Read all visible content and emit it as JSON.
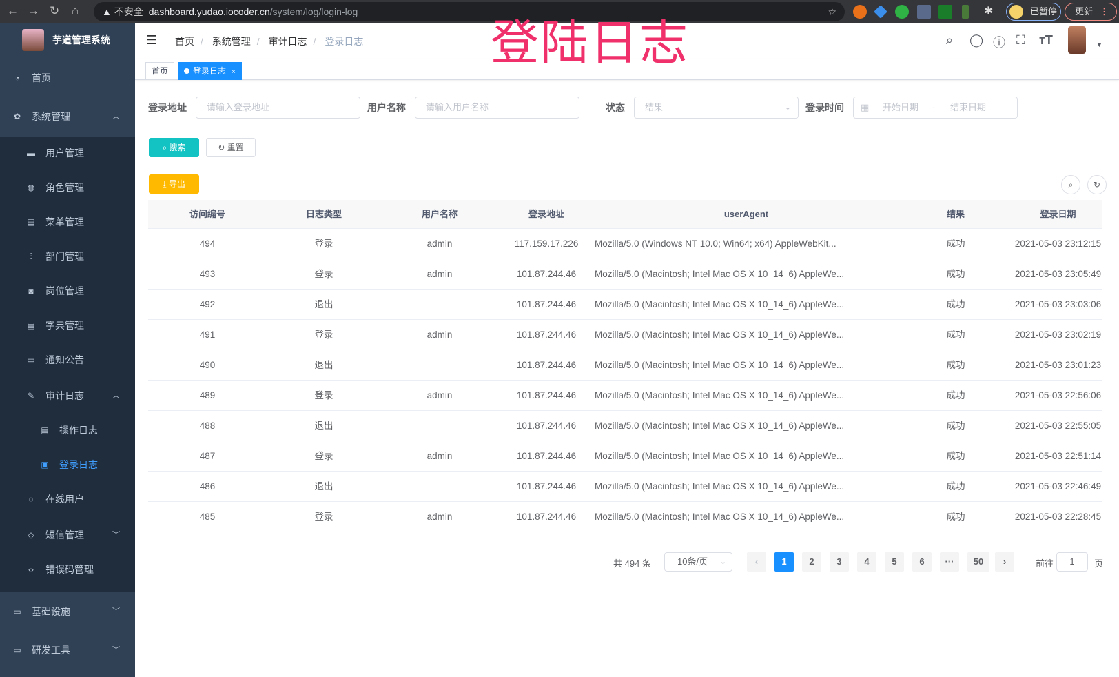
{
  "browser": {
    "security": "不安全",
    "url_host": "dashboard.yudao.iocoder.cn",
    "url_path": "/system/log/login-log",
    "paused": "已暂停",
    "update": "更新"
  },
  "sidebar": {
    "title": "芋道管理系统",
    "items": [
      {
        "label": "首页",
        "icon": "dashboard-icon"
      },
      {
        "label": "系统管理",
        "icon": "gear-icon",
        "expanded": true
      },
      {
        "label": "用户管理",
        "icon": "user-icon"
      },
      {
        "label": "角色管理",
        "icon": "role-icon"
      },
      {
        "label": "菜单管理",
        "icon": "menu-icon"
      },
      {
        "label": "部门管理",
        "icon": "tree-icon"
      },
      {
        "label": "岗位管理",
        "icon": "post-icon"
      },
      {
        "label": "字典管理",
        "icon": "dict-icon"
      },
      {
        "label": "通知公告",
        "icon": "message-icon"
      },
      {
        "label": "审计日志",
        "icon": "log-icon",
        "expanded": true
      },
      {
        "label": "操作日志",
        "icon": "form-icon"
      },
      {
        "label": "登录日志",
        "icon": "logininfor-icon",
        "active": true
      },
      {
        "label": "在线用户",
        "icon": "online-icon"
      },
      {
        "label": "短信管理",
        "icon": "sms-icon"
      },
      {
        "label": "错误码管理",
        "icon": "code-icon"
      },
      {
        "label": "基础设施",
        "icon": "monitor-icon"
      },
      {
        "label": "研发工具",
        "icon": "tool-icon"
      }
    ]
  },
  "header": {
    "breadcrumb": [
      "首页",
      "系统管理",
      "审计日志",
      "登录日志"
    ],
    "overlay_title": "登陆日志"
  },
  "tags": [
    {
      "label": "首页"
    },
    {
      "label": "登录日志",
      "active": true
    }
  ],
  "filters": {
    "ip_label": "登录地址",
    "ip_placeholder": "请输入登录地址",
    "user_label": "用户名称",
    "user_placeholder": "请输入用户名称",
    "status_label": "状态",
    "status_placeholder": "结果",
    "time_label": "登录时间",
    "start_placeholder": "开始日期",
    "end_placeholder": "结束日期",
    "range_sep": "-"
  },
  "actions": {
    "search": "搜索",
    "reset": "重置",
    "export": "导出"
  },
  "colors": {
    "sidebar": "#304156",
    "primary": "#1890ff",
    "search_btn": "#13c2c2",
    "export_btn": "#ffba00",
    "overlay": "#f0306b"
  },
  "table": {
    "columns": [
      "访问编号",
      "日志类型",
      "用户名称",
      "登录地址",
      "userAgent",
      "结果",
      "登录日期"
    ],
    "rows": [
      [
        "494",
        "登录",
        "admin",
        "117.159.17.226",
        "Mozilla/5.0 (Windows NT 10.0; Win64; x64) AppleWebKit...",
        "成功",
        "2021-05-03 23:12:15"
      ],
      [
        "493",
        "登录",
        "admin",
        "101.87.244.46",
        "Mozilla/5.0 (Macintosh; Intel Mac OS X 10_14_6) AppleWe...",
        "成功",
        "2021-05-03 23:05:49"
      ],
      [
        "492",
        "退出",
        "",
        "101.87.244.46",
        "Mozilla/5.0 (Macintosh; Intel Mac OS X 10_14_6) AppleWe...",
        "成功",
        "2021-05-03 23:03:06"
      ],
      [
        "491",
        "登录",
        "admin",
        "101.87.244.46",
        "Mozilla/5.0 (Macintosh; Intel Mac OS X 10_14_6) AppleWe...",
        "成功",
        "2021-05-03 23:02:19"
      ],
      [
        "490",
        "退出",
        "",
        "101.87.244.46",
        "Mozilla/5.0 (Macintosh; Intel Mac OS X 10_14_6) AppleWe...",
        "成功",
        "2021-05-03 23:01:23"
      ],
      [
        "489",
        "登录",
        "admin",
        "101.87.244.46",
        "Mozilla/5.0 (Macintosh; Intel Mac OS X 10_14_6) AppleWe...",
        "成功",
        "2021-05-03 22:56:06"
      ],
      [
        "488",
        "退出",
        "",
        "101.87.244.46",
        "Mozilla/5.0 (Macintosh; Intel Mac OS X 10_14_6) AppleWe...",
        "成功",
        "2021-05-03 22:55:05"
      ],
      [
        "487",
        "登录",
        "admin",
        "101.87.244.46",
        "Mozilla/5.0 (Macintosh; Intel Mac OS X 10_14_6) AppleWe...",
        "成功",
        "2021-05-03 22:51:14"
      ],
      [
        "486",
        "退出",
        "",
        "101.87.244.46",
        "Mozilla/5.0 (Macintosh; Intel Mac OS X 10_14_6) AppleWe...",
        "成功",
        "2021-05-03 22:46:49"
      ],
      [
        "485",
        "登录",
        "admin",
        "101.87.244.46",
        "Mozilla/5.0 (Macintosh; Intel Mac OS X 10_14_6) AppleWe...",
        "成功",
        "2021-05-03 22:28:45"
      ]
    ]
  },
  "pagination": {
    "total": "共 494 条",
    "page_size": "10条/页",
    "pages": [
      "1",
      "2",
      "3",
      "4",
      "5",
      "6",
      "···",
      "50"
    ],
    "current": "1",
    "goto_label": "前往",
    "goto_value": "1",
    "goto_suffix": "页"
  }
}
